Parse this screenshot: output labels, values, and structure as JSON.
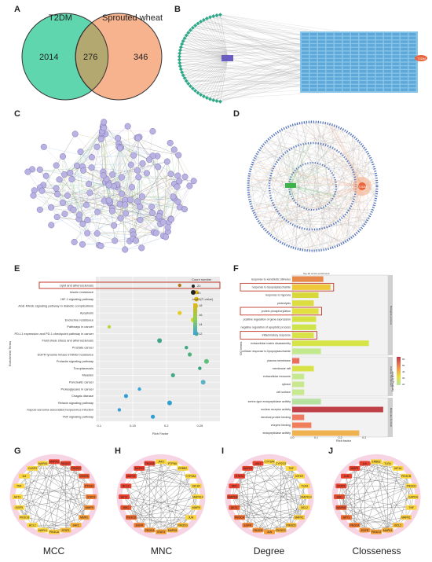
{
  "panels": {
    "A": "A",
    "B": "B",
    "C": "C",
    "D": "D",
    "E": "E",
    "F": "F",
    "G": "G",
    "H": "H",
    "I": "I",
    "J": "J"
  },
  "venn": {
    "left_label": "T2DM",
    "right_label": "Sprouted wheat",
    "left_only": "2014",
    "overlap": "276",
    "right_only": "346",
    "left_color": "#5fd6ae",
    "right_color": "#f7b38e"
  },
  "network_b": {
    "center_node": "SW",
    "hub_label": "T2DM"
  },
  "network_d": {
    "hub_label": "T2DM"
  },
  "kegg": {
    "terms": [
      "Lipid and atherosclerosis",
      "Insulin resistance",
      "HIF-1 signaling pathway",
      "AGE-RAGE signaling pathway in diabetic complications",
      "Apoptosis",
      "Endocrine resistance",
      "Pathways in cancer",
      "PD-L1 expression and PD-1 checkpoint pathway in cancer",
      "Fluid shear stress and atherosclerosis",
      "Prostate cancer",
      "EGFR tyrosine kinase inhibitor resistance",
      "Prolactin signaling pathway",
      "Toxoplasmosis",
      "Measles",
      "Pancreatic cancer",
      "Proteoglycans in cancer",
      "Chagas disease",
      "Relaxin signaling pathway",
      "Kaposi sarcoma-associated herpesvirus infection",
      "TNF signaling pathway"
    ],
    "rich_factor": [
      0.22,
      0.245,
      0.245,
      0.245,
      0.22,
      0.24,
      0.115,
      0.245,
      0.19,
      0.23,
      0.235,
      0.26,
      0.25,
      0.21,
      0.255,
      0.16,
      0.14,
      0.205,
      0.13,
      0.18
    ],
    "point_colors": [
      "#b07a1c",
      "#e2b515",
      "#e6c015",
      "#e3bc17",
      "#e6cc22",
      "#d5d52b",
      "#bcd640",
      "#4aa88a",
      "#42a58a",
      "#3fa686",
      "#4fb080",
      "#5cc07a",
      "#37a183",
      "#45a988",
      "#5db1c5",
      "#3aa6d6",
      "#2f9fd8",
      "#33a0d0",
      "#3a9bd5",
      "#2f9ed4"
    ],
    "highlight": "Insulin resistance",
    "xlabel": "Rich Factor",
    "ylabel": "Enrichment Terms",
    "xticks": [
      "0.1",
      "0.15",
      "0.2",
      "0.25"
    ],
    "legend_size_title": "Count number",
    "legend_sizes": [
      "20",
      "40"
    ],
    "legend_color_title": "-log10(P-value)",
    "legend_color_ticks": [
      "18",
      "16",
      "14",
      "12"
    ]
  },
  "go": {
    "title": "Top 20 of GO enrichment",
    "ylabel": "GO terms",
    "xlabel": "Rich factor",
    "xticks": [
      "0.0",
      "0.1",
      "0.2",
      "0.3"
    ],
    "groups": [
      "Biological process",
      "Cellular component",
      "Molecular function"
    ],
    "bp_terms": [
      "response to xenobiotic stimulus",
      "response to lipopolysaccharide",
      "response to hypoxia",
      "proteolysis",
      "protein phosphorylation",
      "positive regulation of gene expression",
      "negative regulation of apoptotic process",
      "inflammatory response",
      "extracellular matrix disassembly",
      "cellular response to lipopolysaccharide"
    ],
    "bp_values": [
      0.13,
      0.16,
      0.11,
      0.09,
      0.11,
      0.1,
      0.1,
      0.09,
      0.32,
      0.12
    ],
    "bp_colors": [
      "#e6894a",
      "#eec83a",
      "#d8d83c",
      "#dcdd40",
      "#e2e03f",
      "#d6e244",
      "#cfe34a",
      "#d9e246",
      "#d7e448",
      "#c3e98e"
    ],
    "cc_terms": [
      "plasma membrane",
      "membrane raft",
      "extracellular exosome",
      "cytosol",
      "cell surface"
    ],
    "cc_values": [
      0.03,
      0.09,
      0.05,
      0.05,
      0.05
    ],
    "cc_colors": [
      "#ea6e5a",
      "#d8e247",
      "#c6e98f",
      "#c9e88e",
      "#c7e98f"
    ],
    "mf_terms": [
      "serine-type endopeptidase activity",
      "nuclear receptor activity",
      "identical protein binding",
      "enzyme binding",
      "endopeptidase activity"
    ],
    "mf_values": [
      0.12,
      0.38,
      0.05,
      0.08,
      0.28
    ],
    "mf_colors": [
      "#b6e2a0",
      "#c04047",
      "#ef7a62",
      "#ef7e5b",
      "#f0b24e"
    ],
    "highlighted": [
      "response to lipopolysaccharide",
      "protein phosphorylation",
      "inflammatory response"
    ],
    "legend_title": "-log10(Pvalue)",
    "legend_ticks": [
      "60",
      "50",
      "40",
      "30",
      "20"
    ]
  },
  "hubs": [
    {
      "label": "MCC",
      "genes": [
        "MAPK3",
        "PIK3CG",
        "PIK3CD",
        "VEGFA",
        "PTGS2",
        "STAT3",
        "MMP9",
        "MMP2",
        "JAK1",
        "STAT1",
        "PIK3CA",
        "MAPK1",
        "BCL2",
        "PIK3CB",
        "EGFR",
        "AKT1",
        "TNF",
        "IL6",
        "CASP3",
        "MAPK8"
      ],
      "colors": [
        "#e8412d",
        "#e8412d",
        "#e24a2c",
        "#e4552c",
        "#ea6a2f",
        "#ed7b31",
        "#ef8d34",
        "#f29c36",
        "#f3ab38",
        "#f6bb3b",
        "#f8c93d",
        "#fad53f",
        "#fad53f",
        "#fad53f",
        "#fad53f",
        "#fad53f",
        "#fad53f",
        "#fad53f",
        "#fad53f",
        "#fad53f"
      ]
    },
    {
      "label": "MNC",
      "genes": [
        "JAK1",
        "PTPN6",
        "ERBB2",
        "CYP3A4",
        "IGF1R",
        "MAPK14",
        "MMP9",
        "JUN",
        "PIK3CG",
        "MAPK8",
        "STAT3",
        "PIK3CA",
        "EGFR",
        "PIK3CD",
        "SRC",
        "AKT1",
        "BCL2",
        "MAPK1",
        "MAPK3",
        "PIK3CB"
      ],
      "colors": [
        "#fad53f",
        "#fad53f",
        "#fad53f",
        "#fad53f",
        "#fad53f",
        "#fad53f",
        "#fad53f",
        "#fad53f",
        "#f6bb3b",
        "#f3ab38",
        "#f29c36",
        "#ef8d34",
        "#ed7b31",
        "#ea6a2f",
        "#e4552c",
        "#e8412d",
        "#e8412d",
        "#e8412d",
        "#e8412d",
        "#e8412d"
      ]
    },
    {
      "label": "Degree",
      "genes": [
        "CYP3A4",
        "CYP2C9",
        "TNF",
        "IGF1R",
        "TLR4",
        "MAPK14",
        "BCL2",
        "MAPK1",
        "PIK3CD",
        "PIK3CG",
        "JUN",
        "PIK3CB",
        "EGFR",
        "PIK3CA",
        "AKT1",
        "MAPK8",
        "SRC",
        "STAT3",
        "MAPK3",
        "JAK1"
      ],
      "colors": [
        "#fad53f",
        "#fad53f",
        "#fad53f",
        "#fad53f",
        "#fad53f",
        "#fad53f",
        "#fad53f",
        "#f8c93d",
        "#f6bb3b",
        "#f3ab38",
        "#f29c36",
        "#ef8d34",
        "#ed7b31",
        "#ea6a2f",
        "#e4552c",
        "#e24a2c",
        "#e8412d",
        "#e8412d",
        "#e8412d",
        "#e8412d"
      ]
    },
    {
      "label": "Closseness",
      "genes": [
        "ERBB2",
        "TLR4",
        "HIF1A",
        "PIK3CB",
        "PIK3CD",
        "GAPDH",
        "TNF",
        "MAPK1",
        "BCL2",
        "MAPK3",
        "PIK3CG",
        "EGFR",
        "PIK3CA",
        "AKT1",
        "MAPK8",
        "SRC",
        "STAT3",
        "JUN",
        "MMP9",
        "IL6"
      ],
      "colors": [
        "#fad53f",
        "#fad53f",
        "#fad53f",
        "#fad53f",
        "#fad53f",
        "#fad53f",
        "#fad53f",
        "#f8c93d",
        "#f6bb3b",
        "#f3ab38",
        "#f29c36",
        "#ef8d34",
        "#ed7b31",
        "#ea6a2f",
        "#e4552c",
        "#e24a2c",
        "#e8412d",
        "#e8412d",
        "#e8412d",
        "#e8412d"
      ]
    }
  ]
}
